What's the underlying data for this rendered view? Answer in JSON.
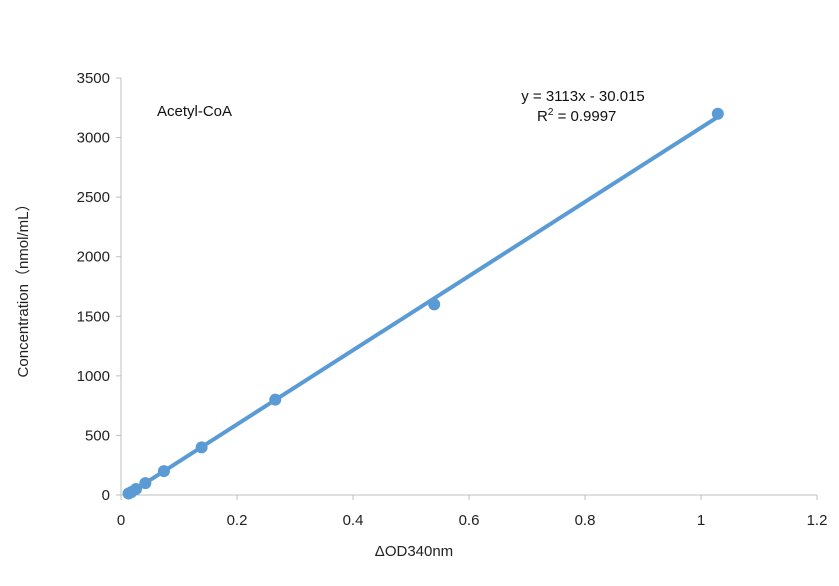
{
  "chart_data": {
    "type": "scatter",
    "series_label": "Acetyl-CoA",
    "xlabel": "ΔOD340nm",
    "ylabel": "Concentration（nmol/mL）",
    "xlim": [
      0,
      1.2
    ],
    "ylim": [
      0,
      3500
    ],
    "x_ticks": [
      "0",
      "0.2",
      "0.4",
      "0.6",
      "0.8",
      "1",
      "1.2"
    ],
    "y_ticks": [
      "0",
      "500",
      "1000",
      "1500",
      "2000",
      "2500",
      "3000",
      "3500"
    ],
    "points": [
      {
        "x": 0.013,
        "y": 12.5
      },
      {
        "x": 0.018,
        "y": 25
      },
      {
        "x": 0.026,
        "y": 50
      },
      {
        "x": 0.042,
        "y": 100
      },
      {
        "x": 0.074,
        "y": 200
      },
      {
        "x": 0.139,
        "y": 400
      },
      {
        "x": 0.266,
        "y": 800
      },
      {
        "x": 0.54,
        "y": 1600
      },
      {
        "x": 1.029,
        "y": 3200
      }
    ],
    "trendline": {
      "slope": 3113,
      "intercept": -30.015,
      "x_range": [
        0.013,
        1.029
      ]
    },
    "equation": "y = 3113x - 30.015",
    "r2_prefix": "R",
    "r2_sup": "2",
    "r2_value": " = 0.9997",
    "grid": false,
    "colors": {
      "series": "#5b9bd5",
      "axis": "#bfbfbf"
    }
  }
}
